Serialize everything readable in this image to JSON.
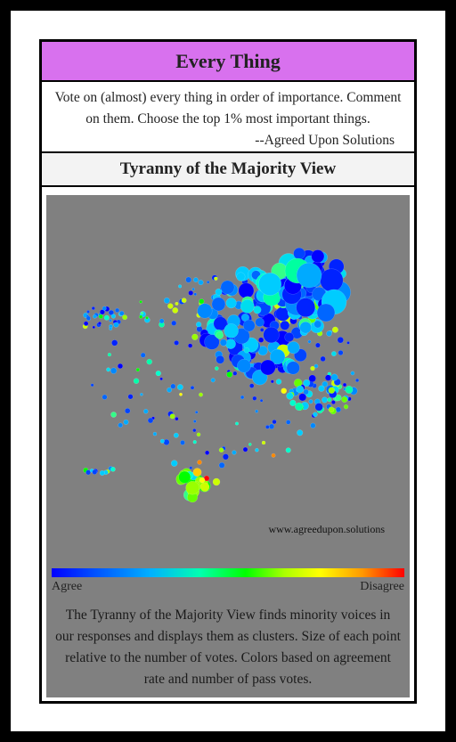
{
  "header": {
    "title": "Every Thing"
  },
  "description": {
    "text": "Vote on (almost) every thing in order of importance. Comment on them. Choose the top 1% most important things.",
    "attribution": "--Agreed Upon Solutions"
  },
  "section": {
    "title": "Tyranny of the Majority View"
  },
  "visualization": {
    "watermark": "www.agreedupon.solutions",
    "scale_left": "Agree",
    "scale_right": "Disagree",
    "explanation": "The Tyranny of the Majority View finds minority voices in our responses and displays them as clusters. Size of each point relative to the number of votes. Colors based on agreement rate and number of pass votes."
  },
  "colors": {
    "title_bar": "#d871ee",
    "viz_background": "#808080",
    "agree": "#0000ff",
    "disagree": "#ff0000"
  }
}
